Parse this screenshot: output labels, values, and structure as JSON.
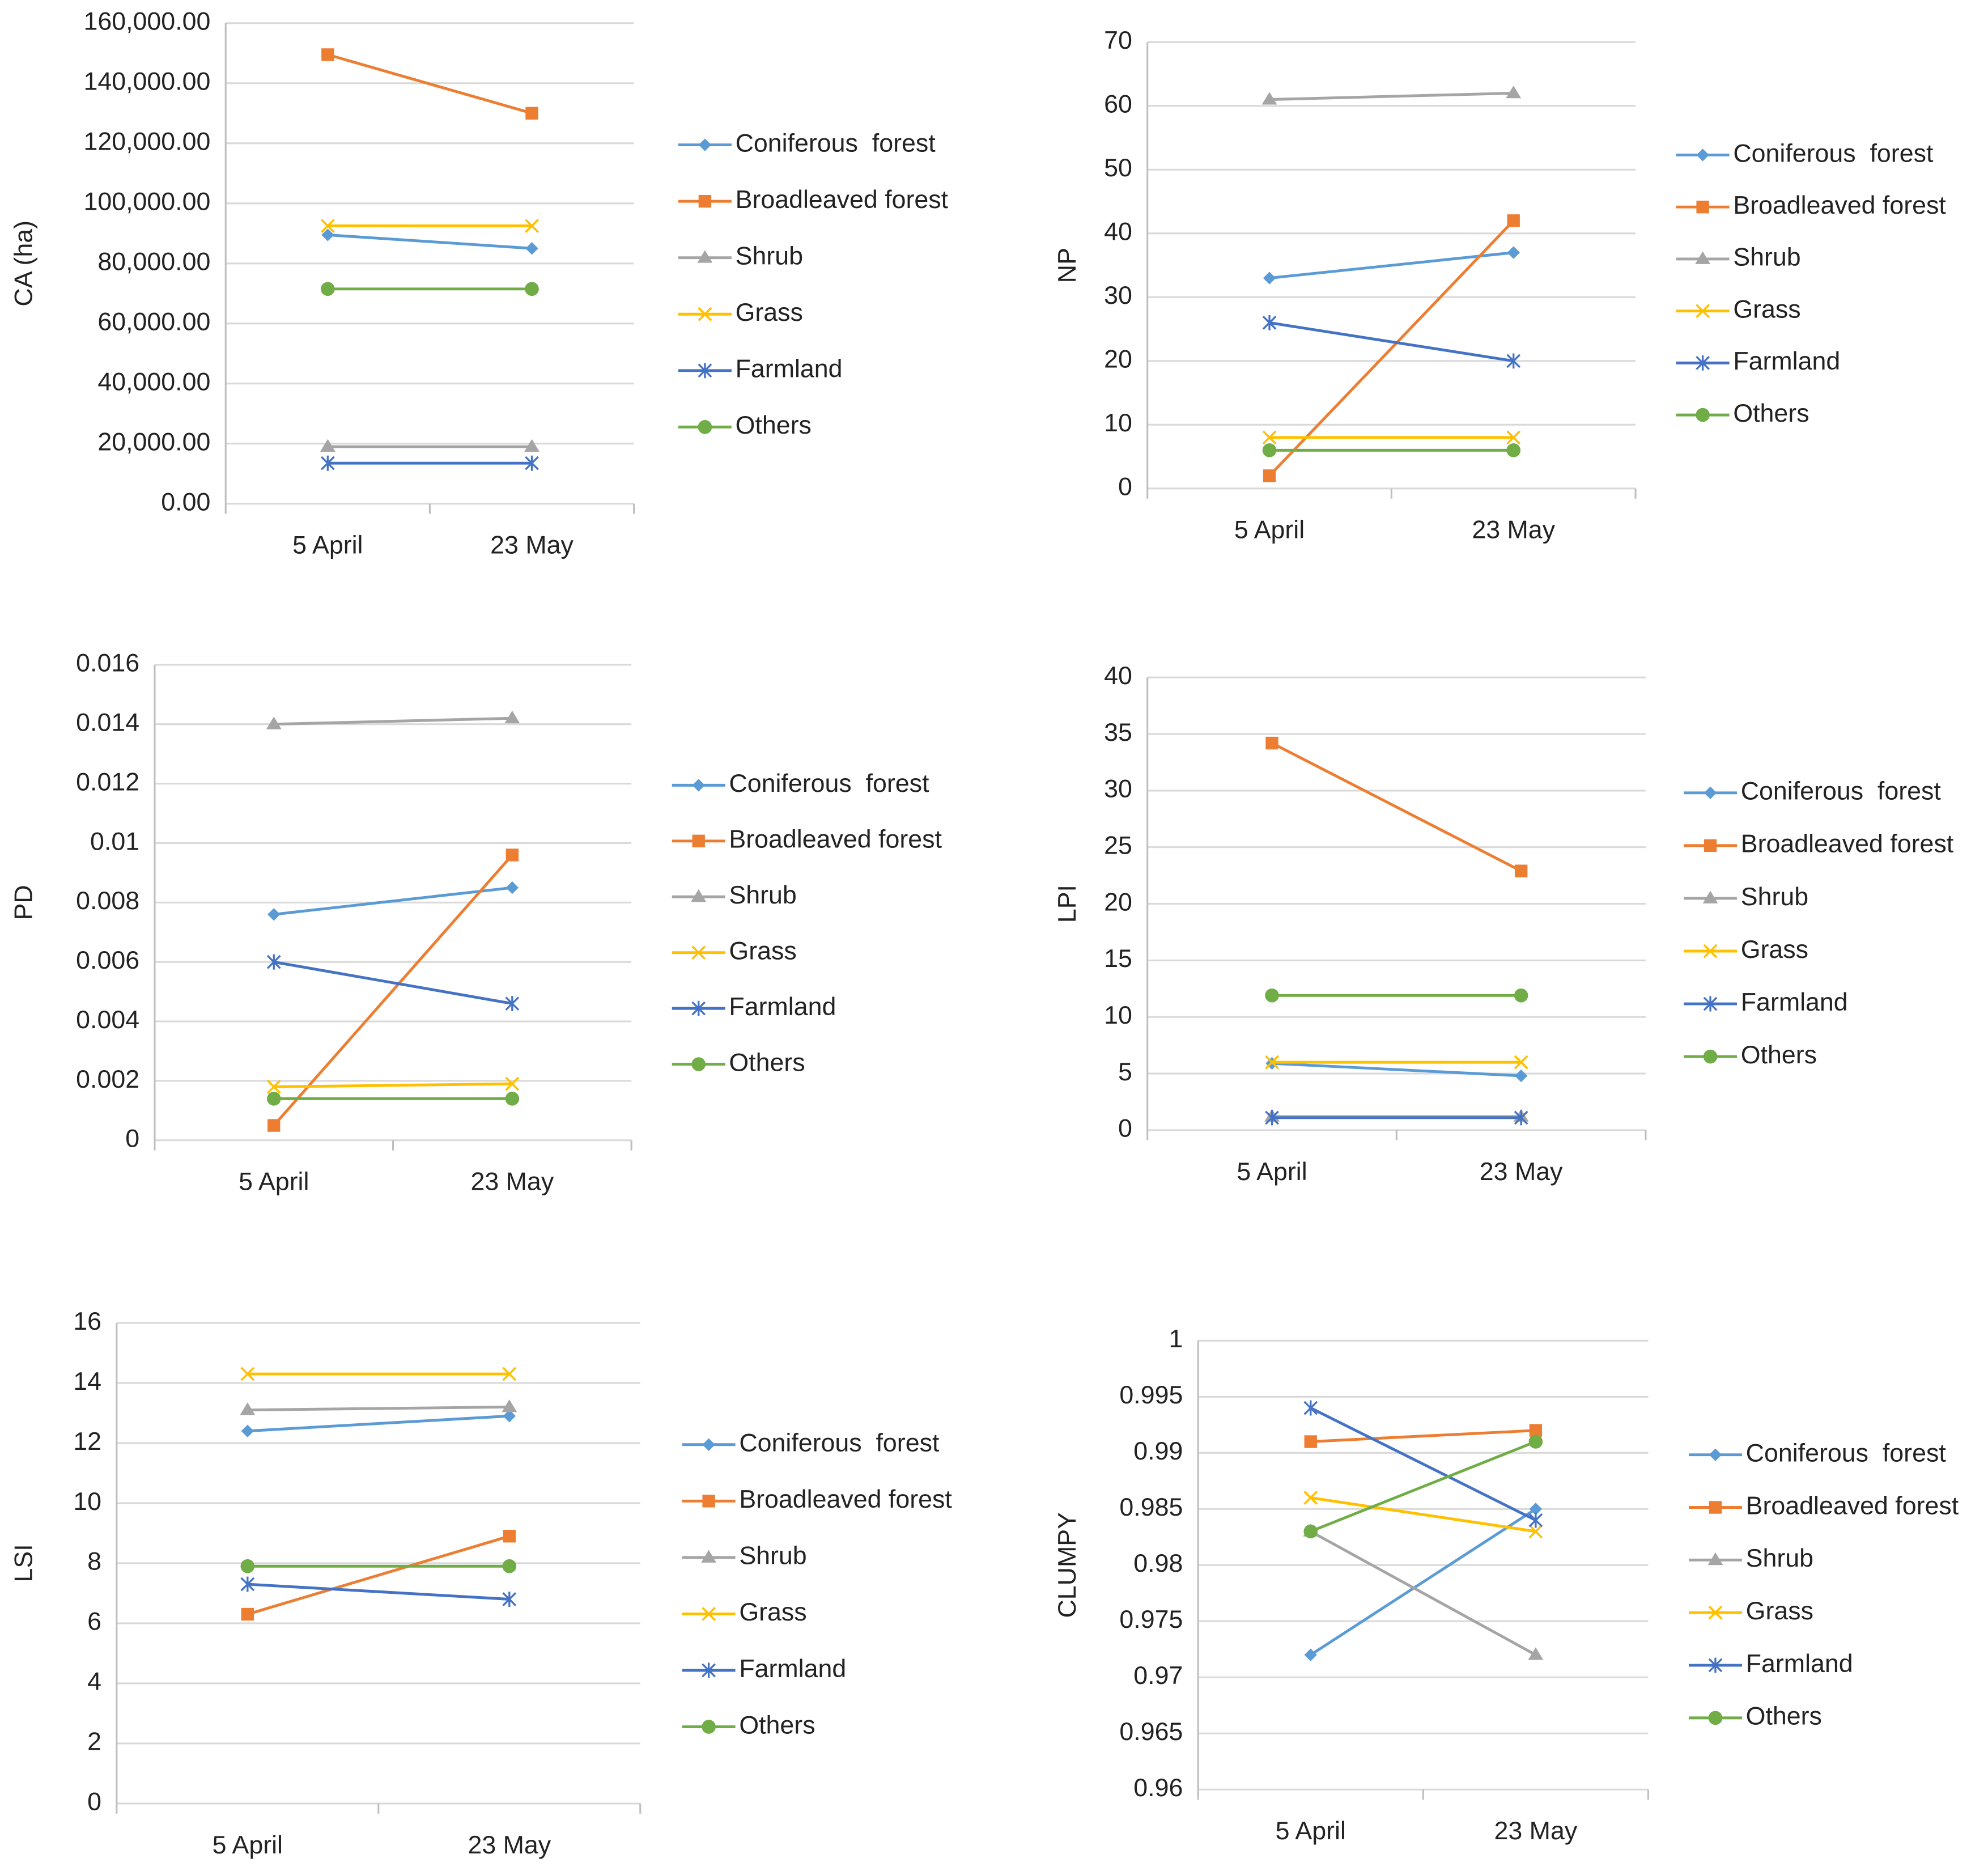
{
  "chart_data": [
    {
      "type": "line",
      "ylabel": "CA (ha)",
      "categories": [
        "5 April",
        "23 May"
      ],
      "ylim": [
        0,
        160000
      ],
      "yticks": [
        {
          "value": 0,
          "label": "0.00"
        },
        {
          "value": 20000,
          "label": "20,000.00"
        },
        {
          "value": 40000,
          "label": "40,000.00"
        },
        {
          "value": 60000,
          "label": "60,000.00"
        },
        {
          "value": 80000,
          "label": "80,000.00"
        },
        {
          "value": 100000,
          "label": "100,000.00"
        },
        {
          "value": 120000,
          "label": "120,000.00"
        },
        {
          "value": 140000,
          "label": "140,000.00"
        },
        {
          "value": 160000,
          "label": "160,000.00"
        }
      ],
      "grid": true,
      "series": [
        {
          "name": "Coniferous  forest",
          "color": "#5b9bd5",
          "marker": "diamond",
          "values": [
            89500,
            85000
          ]
        },
        {
          "name": "Broadleaved forest",
          "color": "#ed7d31",
          "marker": "square",
          "values": [
            149500,
            130000
          ]
        },
        {
          "name": "Shrub",
          "color": "#a5a5a5",
          "marker": "triangle",
          "values": [
            19000,
            19000
          ]
        },
        {
          "name": "Grass",
          "color": "#ffc000",
          "marker": "x",
          "values": [
            92500,
            92500
          ]
        },
        {
          "name": "Farmland",
          "color": "#4472c4",
          "marker": "star",
          "values": [
            13500,
            13500
          ]
        },
        {
          "name": "Others",
          "color": "#70ad47",
          "marker": "circle",
          "values": [
            71500,
            71500
          ]
        }
      ]
    },
    {
      "type": "line",
      "ylabel": "NP",
      "categories": [
        "5 April",
        "23 May"
      ],
      "ylim": [
        0,
        70
      ],
      "yticks": [
        0,
        10,
        20,
        30,
        40,
        50,
        60,
        70
      ],
      "grid": true,
      "series": [
        {
          "name": "Coniferous  forest",
          "color": "#5b9bd5",
          "marker": "diamond",
          "values": [
            33,
            37
          ]
        },
        {
          "name": "Broadleaved forest",
          "color": "#ed7d31",
          "marker": "square",
          "values": [
            2,
            42
          ]
        },
        {
          "name": "Shrub",
          "color": "#a5a5a5",
          "marker": "triangle",
          "values": [
            61,
            62
          ]
        },
        {
          "name": "Grass",
          "color": "#ffc000",
          "marker": "x",
          "values": [
            8,
            8
          ]
        },
        {
          "name": "Farmland",
          "color": "#4472c4",
          "marker": "star",
          "values": [
            26,
            20
          ]
        },
        {
          "name": "Others",
          "color": "#70ad47",
          "marker": "circle",
          "values": [
            6,
            6
          ]
        }
      ]
    },
    {
      "type": "line",
      "ylabel": "PD",
      "categories": [
        "5 April",
        "23 May"
      ],
      "ylim": [
        0,
        0.016
      ],
      "yticks": [
        0,
        0.002,
        0.004,
        0.006,
        0.008,
        0.01,
        0.012,
        0.014,
        0.016
      ],
      "grid": true,
      "series": [
        {
          "name": "Coniferous  forest",
          "color": "#5b9bd5",
          "marker": "diamond",
          "values": [
            0.0076,
            0.0085
          ]
        },
        {
          "name": "Broadleaved forest",
          "color": "#ed7d31",
          "marker": "square",
          "values": [
            0.0005,
            0.0096
          ]
        },
        {
          "name": "Shrub",
          "color": "#a5a5a5",
          "marker": "triangle",
          "values": [
            0.014,
            0.0142
          ]
        },
        {
          "name": "Grass",
          "color": "#ffc000",
          "marker": "x",
          "values": [
            0.0018,
            0.0019
          ]
        },
        {
          "name": "Farmland",
          "color": "#4472c4",
          "marker": "star",
          "values": [
            0.006,
            0.0046
          ]
        },
        {
          "name": "Others",
          "color": "#70ad47",
          "marker": "circle",
          "values": [
            0.0014,
            0.0014
          ]
        }
      ]
    },
    {
      "type": "line",
      "ylabel": "LPI",
      "categories": [
        "5 April",
        "23 May"
      ],
      "ylim": [
        0,
        40
      ],
      "yticks": [
        0,
        5,
        10,
        15,
        20,
        25,
        30,
        35,
        40
      ],
      "grid": true,
      "series": [
        {
          "name": "Coniferous  forest",
          "color": "#5b9bd5",
          "marker": "diamond",
          "values": [
            5.9,
            4.8
          ]
        },
        {
          "name": "Broadleaved forest",
          "color": "#ed7d31",
          "marker": "square",
          "values": [
            34.2,
            22.9
          ]
        },
        {
          "name": "Shrub",
          "color": "#a5a5a5",
          "marker": "triangle",
          "values": [
            1.2,
            1.2
          ]
        },
        {
          "name": "Grass",
          "color": "#ffc000",
          "marker": "x",
          "values": [
            6.0,
            6.0
          ]
        },
        {
          "name": "Farmland",
          "color": "#4472c4",
          "marker": "star",
          "values": [
            1.1,
            1.1
          ]
        },
        {
          "name": "Others",
          "color": "#70ad47",
          "marker": "circle",
          "values": [
            11.9,
            11.9
          ]
        }
      ]
    },
    {
      "type": "line",
      "ylabel": "LSI",
      "categories": [
        "5 April",
        "23 May"
      ],
      "ylim": [
        0,
        16
      ],
      "yticks": [
        0,
        2,
        4,
        6,
        8,
        10,
        12,
        14,
        16
      ],
      "grid": true,
      "series": [
        {
          "name": "Coniferous  forest",
          "color": "#5b9bd5",
          "marker": "diamond",
          "values": [
            12.4,
            12.9
          ]
        },
        {
          "name": "Broadleaved forest",
          "color": "#ed7d31",
          "marker": "square",
          "values": [
            6.3,
            8.9
          ]
        },
        {
          "name": "Shrub",
          "color": "#a5a5a5",
          "marker": "triangle",
          "values": [
            13.1,
            13.2
          ]
        },
        {
          "name": "Grass",
          "color": "#ffc000",
          "marker": "x",
          "values": [
            14.3,
            14.3
          ]
        },
        {
          "name": "Farmland",
          "color": "#4472c4",
          "marker": "star",
          "values": [
            7.3,
            6.8
          ]
        },
        {
          "name": "Others",
          "color": "#70ad47",
          "marker": "circle",
          "values": [
            7.9,
            7.9
          ]
        }
      ]
    },
    {
      "type": "line",
      "ylabel": "CLUMPY",
      "categories": [
        "5 April",
        "23 May"
      ],
      "ylim": [
        0.96,
        1
      ],
      "yticks": [
        0.96,
        0.965,
        0.97,
        0.975,
        0.98,
        0.985,
        0.99,
        0.995,
        1
      ],
      "grid": true,
      "series": [
        {
          "name": "Coniferous  forest",
          "color": "#5b9bd5",
          "marker": "diamond",
          "values": [
            0.972,
            0.985
          ]
        },
        {
          "name": "Broadleaved forest",
          "color": "#ed7d31",
          "marker": "square",
          "values": [
            0.991,
            0.992
          ]
        },
        {
          "name": "Shrub",
          "color": "#a5a5a5",
          "marker": "triangle",
          "values": [
            0.983,
            0.972
          ]
        },
        {
          "name": "Grass",
          "color": "#ffc000",
          "marker": "x",
          "values": [
            0.986,
            0.983
          ]
        },
        {
          "name": "Farmland",
          "color": "#4472c4",
          "marker": "star",
          "values": [
            0.994,
            0.984
          ]
        },
        {
          "name": "Others",
          "color": "#70ad47",
          "marker": "circle",
          "values": [
            0.983,
            0.991
          ]
        }
      ]
    }
  ]
}
